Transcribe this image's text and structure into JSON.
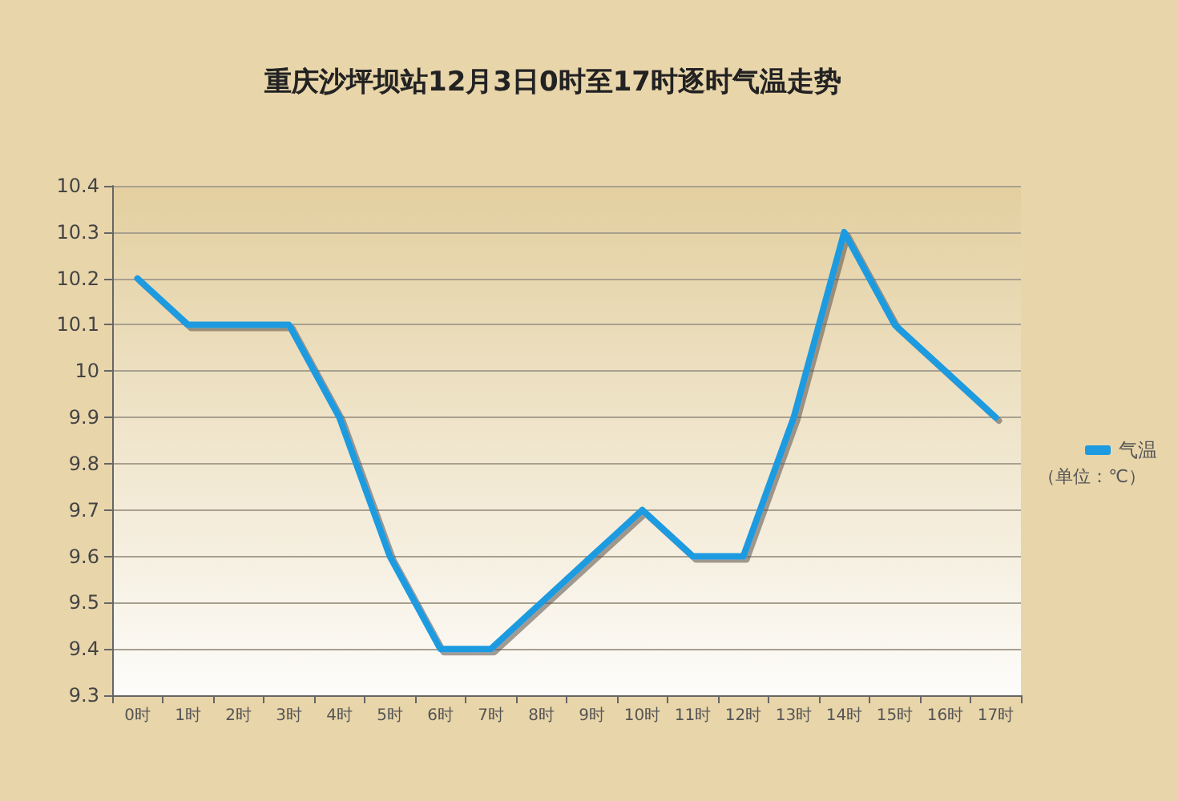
{
  "chart_data": {
    "type": "line",
    "title": "重庆沙坪坝站12月3日0时至17时逐时气温走势",
    "categories": [
      "0时",
      "1时",
      "2时",
      "3时",
      "4时",
      "5时",
      "6时",
      "7时",
      "8时",
      "9时",
      "10时",
      "11时",
      "12时",
      "13时",
      "14时",
      "15时",
      "16时",
      "17时"
    ],
    "series": [
      {
        "name": "气温",
        "color": "#1e9be0",
        "values": [
          10.2,
          10.1,
          10.1,
          10.1,
          9.9,
          9.6,
          9.4,
          9.4,
          9.5,
          9.6,
          9.7,
          9.6,
          9.6,
          9.9,
          10.3,
          10.1,
          10.0,
          9.9
        ]
      }
    ],
    "ylim": [
      9.3,
      10.4
    ],
    "yticks": [
      9.3,
      9.4,
      9.5,
      9.6,
      9.7,
      9.8,
      9.9,
      10,
      10.1,
      10.2,
      10.3,
      10.4
    ],
    "grid": "y",
    "legend": "right",
    "marker": "none",
    "line_style": "solid",
    "annotations": [
      "（单位：℃）"
    ]
  }
}
